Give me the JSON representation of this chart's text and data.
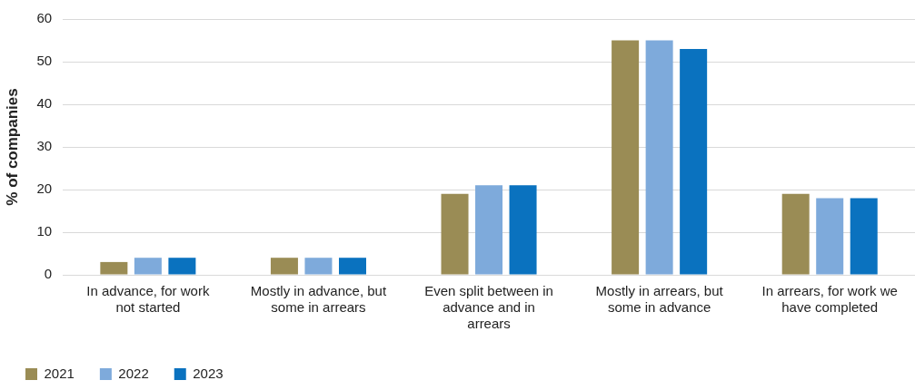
{
  "chart_data": {
    "type": "bar",
    "ylabel": "% of companies",
    "categories": [
      "In advance, for work not started",
      "Mostly in advance, but some in arrears",
      "Even split between in advance and in arrears",
      "Mostly in arrears, but some in advance",
      "In arrears, for work we have completed"
    ],
    "series": [
      {
        "name": "2021",
        "color": "#9a8c55",
        "values": [
          3,
          4,
          19,
          55,
          19
        ]
      },
      {
        "name": "2022",
        "color": "#7eaadb",
        "values": [
          4,
          4,
          21,
          55,
          18
        ]
      },
      {
        "name": "2023",
        "color": "#0a72bf",
        "values": [
          4,
          4,
          21,
          53,
          18
        ]
      }
    ],
    "ylim": [
      0,
      60
    ],
    "yticks": [
      0,
      10,
      20,
      30,
      40,
      50,
      60
    ],
    "grid": "y",
    "legend": "bottom left"
  }
}
